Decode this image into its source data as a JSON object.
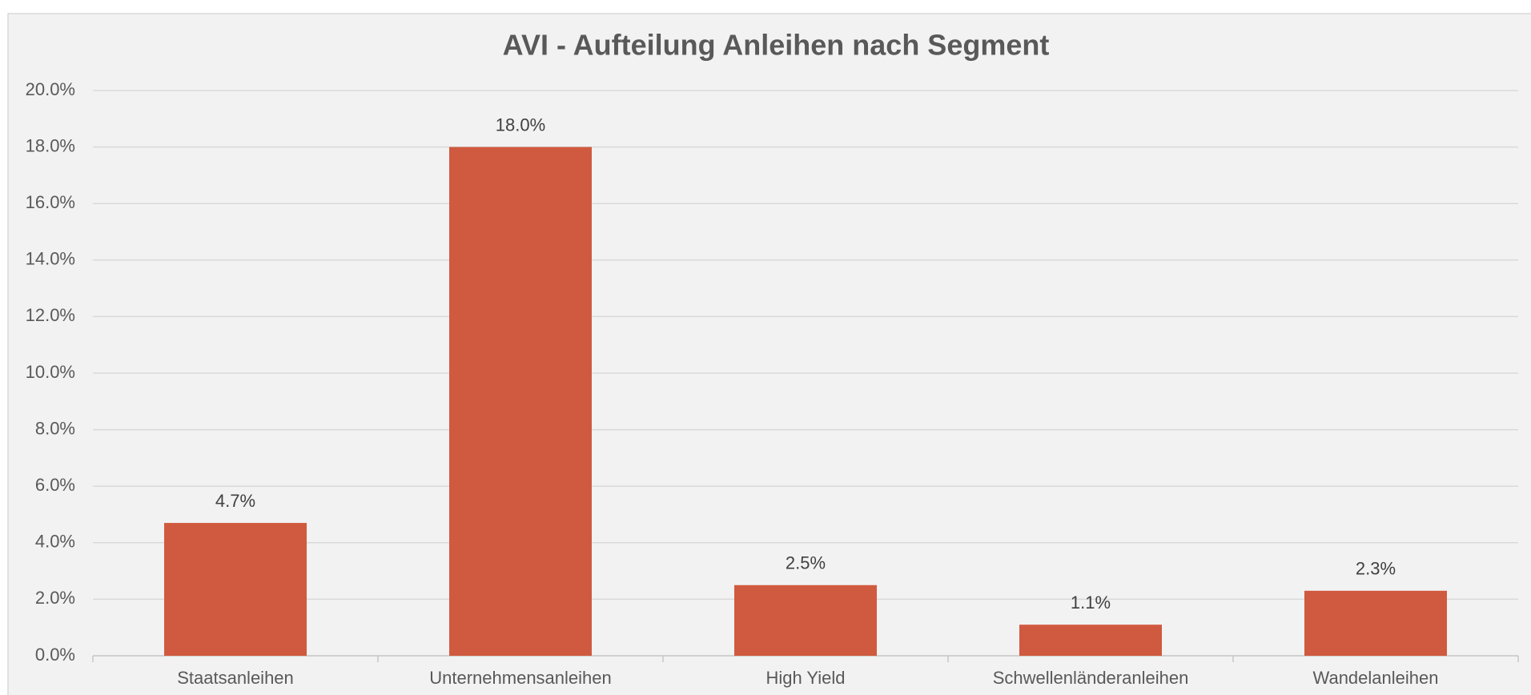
{
  "chart_data": {
    "type": "bar",
    "title": "AVI - Aufteilung Anleihen nach Segment",
    "categories": [
      "Staatsanleihen",
      "Unternehmensanleihen",
      "High Yield",
      "Schwellenländeranleihen",
      "Wandelanleihen"
    ],
    "values": [
      4.7,
      18.0,
      2.5,
      1.1,
      2.3
    ],
    "value_labels": [
      "4.7%",
      "18.0%",
      "2.5%",
      "1.1%",
      "2.3%"
    ],
    "color": "#d05a3f",
    "ylim": [
      0,
      20
    ],
    "yticks": [
      {
        "value": 0,
        "label": "0.0%"
      },
      {
        "value": 2,
        "label": "2.0%"
      },
      {
        "value": 4,
        "label": "4.0%"
      },
      {
        "value": 6,
        "label": "6.0%"
      },
      {
        "value": 8,
        "label": "8.0%"
      },
      {
        "value": 10,
        "label": "10.0%"
      },
      {
        "value": 12,
        "label": "12.0%"
      },
      {
        "value": 14,
        "label": "14.0%"
      },
      {
        "value": 16,
        "label": "16.0%"
      },
      {
        "value": 18,
        "label": "18.0%"
      },
      {
        "value": 20,
        "label": "20.0%"
      }
    ],
    "grid": true
  }
}
